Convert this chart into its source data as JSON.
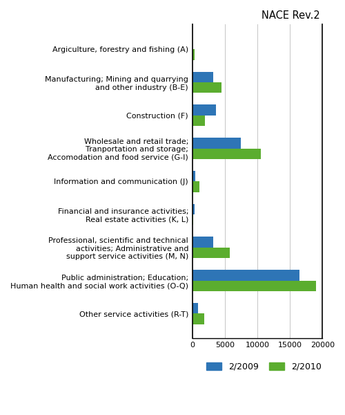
{
  "title": "NACE Rev.2",
  "categories": [
    "Argiculture, forestry and fishing (A)",
    "Manufacturing; Mining and quarrying\nand other industry (B-E)",
    "Construction (F)",
    "Wholesale and retail trade;\nTranportation and storage;\nAccomodation and food service (G-I)",
    "Information and communication (J)",
    "Financial and insurance activities;\nReal estate activities (K, L)",
    "Professional, scientific and technical\nactivities; Administrative and\nsupport service activities (M, N)",
    "Public administration; Education;\nHuman health and social work activities (O-Q)",
    "Other service activities (R-T)"
  ],
  "series": {
    "2/2009": [
      0,
      3200,
      3700,
      7500,
      500,
      350,
      3200,
      16500,
      900
    ],
    "2/2010": [
      400,
      4500,
      2000,
      10500,
      1100,
      150,
      5800,
      19000,
      1800
    ]
  },
  "colors": {
    "2/2009": "#2E75B6",
    "2/2010": "#5BAD2F"
  },
  "xlim": [
    0,
    20000
  ],
  "xticks": [
    0,
    5000,
    10000,
    15000,
    20000
  ],
  "legend_labels": [
    "2/2009",
    "2/2010"
  ],
  "background_color": "#ffffff",
  "bar_height": 0.32,
  "title_fontsize": 10.5,
  "label_fontsize": 8,
  "tick_fontsize": 8
}
